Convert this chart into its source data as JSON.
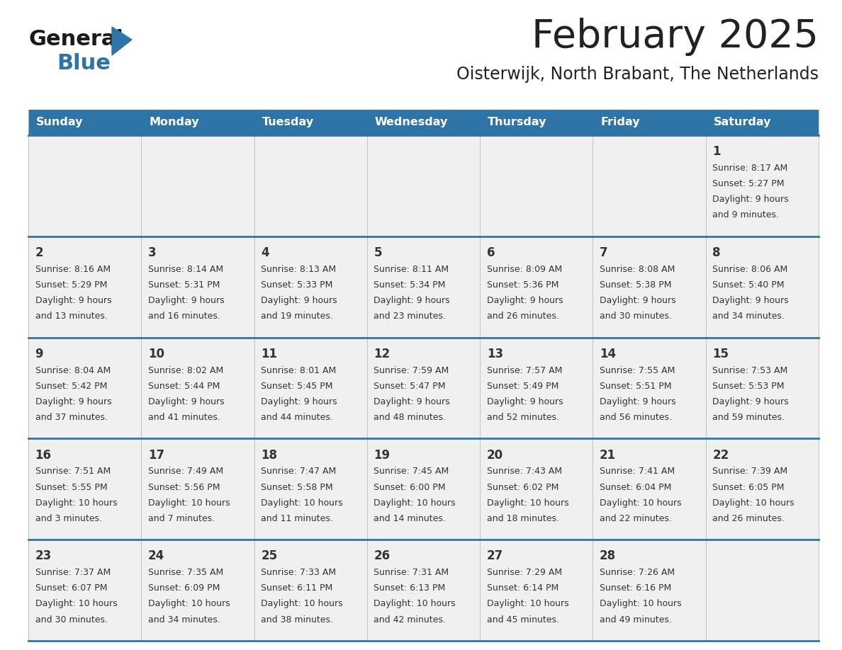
{
  "title": "February 2025",
  "subtitle": "Oisterwijk, North Brabant, The Netherlands",
  "days_of_week": [
    "Sunday",
    "Monday",
    "Tuesday",
    "Wednesday",
    "Thursday",
    "Friday",
    "Saturday"
  ],
  "header_bg": "#2E74A6",
  "header_text": "#FFFFFF",
  "cell_bg": "#F0F0F0",
  "divider_color": "#2E74A6",
  "text_color": "#333333",
  "title_color": "#222222",
  "logo_general_color": "#1a1a1a",
  "logo_blue_color": "#2E74A6",
  "calendar_data": [
    [
      null,
      null,
      null,
      null,
      null,
      null,
      {
        "day": 1,
        "sunrise": "8:17 AM",
        "sunset": "5:27 PM",
        "daylight": "9 hours and 9 minutes"
      }
    ],
    [
      {
        "day": 2,
        "sunrise": "8:16 AM",
        "sunset": "5:29 PM",
        "daylight": "9 hours and 13 minutes"
      },
      {
        "day": 3,
        "sunrise": "8:14 AM",
        "sunset": "5:31 PM",
        "daylight": "9 hours and 16 minutes"
      },
      {
        "day": 4,
        "sunrise": "8:13 AM",
        "sunset": "5:33 PM",
        "daylight": "9 hours and 19 minutes"
      },
      {
        "day": 5,
        "sunrise": "8:11 AM",
        "sunset": "5:34 PM",
        "daylight": "9 hours and 23 minutes"
      },
      {
        "day": 6,
        "sunrise": "8:09 AM",
        "sunset": "5:36 PM",
        "daylight": "9 hours and 26 minutes"
      },
      {
        "day": 7,
        "sunrise": "8:08 AM",
        "sunset": "5:38 PM",
        "daylight": "9 hours and 30 minutes"
      },
      {
        "day": 8,
        "sunrise": "8:06 AM",
        "sunset": "5:40 PM",
        "daylight": "9 hours and 34 minutes"
      }
    ],
    [
      {
        "day": 9,
        "sunrise": "8:04 AM",
        "sunset": "5:42 PM",
        "daylight": "9 hours and 37 minutes"
      },
      {
        "day": 10,
        "sunrise": "8:02 AM",
        "sunset": "5:44 PM",
        "daylight": "9 hours and 41 minutes"
      },
      {
        "day": 11,
        "sunrise": "8:01 AM",
        "sunset": "5:45 PM",
        "daylight": "9 hours and 44 minutes"
      },
      {
        "day": 12,
        "sunrise": "7:59 AM",
        "sunset": "5:47 PM",
        "daylight": "9 hours and 48 minutes"
      },
      {
        "day": 13,
        "sunrise": "7:57 AM",
        "sunset": "5:49 PM",
        "daylight": "9 hours and 52 minutes"
      },
      {
        "day": 14,
        "sunrise": "7:55 AM",
        "sunset": "5:51 PM",
        "daylight": "9 hours and 56 minutes"
      },
      {
        "day": 15,
        "sunrise": "7:53 AM",
        "sunset": "5:53 PM",
        "daylight": "9 hours and 59 minutes"
      }
    ],
    [
      {
        "day": 16,
        "sunrise": "7:51 AM",
        "sunset": "5:55 PM",
        "daylight": "10 hours and 3 minutes"
      },
      {
        "day": 17,
        "sunrise": "7:49 AM",
        "sunset": "5:56 PM",
        "daylight": "10 hours and 7 minutes"
      },
      {
        "day": 18,
        "sunrise": "7:47 AM",
        "sunset": "5:58 PM",
        "daylight": "10 hours and 11 minutes"
      },
      {
        "day": 19,
        "sunrise": "7:45 AM",
        "sunset": "6:00 PM",
        "daylight": "10 hours and 14 minutes"
      },
      {
        "day": 20,
        "sunrise": "7:43 AM",
        "sunset": "6:02 PM",
        "daylight": "10 hours and 18 minutes"
      },
      {
        "day": 21,
        "sunrise": "7:41 AM",
        "sunset": "6:04 PM",
        "daylight": "10 hours and 22 minutes"
      },
      {
        "day": 22,
        "sunrise": "7:39 AM",
        "sunset": "6:05 PM",
        "daylight": "10 hours and 26 minutes"
      }
    ],
    [
      {
        "day": 23,
        "sunrise": "7:37 AM",
        "sunset": "6:07 PM",
        "daylight": "10 hours and 30 minutes"
      },
      {
        "day": 24,
        "sunrise": "7:35 AM",
        "sunset": "6:09 PM",
        "daylight": "10 hours and 34 minutes"
      },
      {
        "day": 25,
        "sunrise": "7:33 AM",
        "sunset": "6:11 PM",
        "daylight": "10 hours and 38 minutes"
      },
      {
        "day": 26,
        "sunrise": "7:31 AM",
        "sunset": "6:13 PM",
        "daylight": "10 hours and 42 minutes"
      },
      {
        "day": 27,
        "sunrise": "7:29 AM",
        "sunset": "6:14 PM",
        "daylight": "10 hours and 45 minutes"
      },
      {
        "day": 28,
        "sunrise": "7:26 AM",
        "sunset": "6:16 PM",
        "daylight": "10 hours and 49 minutes"
      },
      null
    ]
  ]
}
